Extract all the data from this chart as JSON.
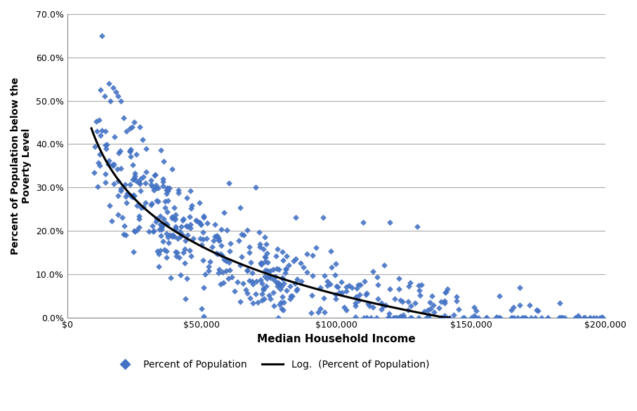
{
  "title": "",
  "xlabel": "Median Household Income",
  "ylabel": "Percent of Population below the\nPoverty Level",
  "scatter_color": "#4472C4",
  "line_color": "#000000",
  "background_color": "#FFFFFF",
  "xlim": [
    0,
    200000
  ],
  "ylim": [
    0.0,
    0.7
  ],
  "xticks": [
    0,
    50000,
    100000,
    150000,
    200000
  ],
  "yticks": [
    0.0,
    0.1,
    0.2,
    0.3,
    0.4,
    0.5,
    0.6,
    0.7
  ],
  "log_a": 1.884,
  "log_b": -0.159,
  "xlabel_fontsize": 11,
  "ylabel_fontsize": 10,
  "tick_fontsize": 9,
  "legend_fontsize": 10,
  "grid_color": "#AAAAAA",
  "border_color": "#888888"
}
